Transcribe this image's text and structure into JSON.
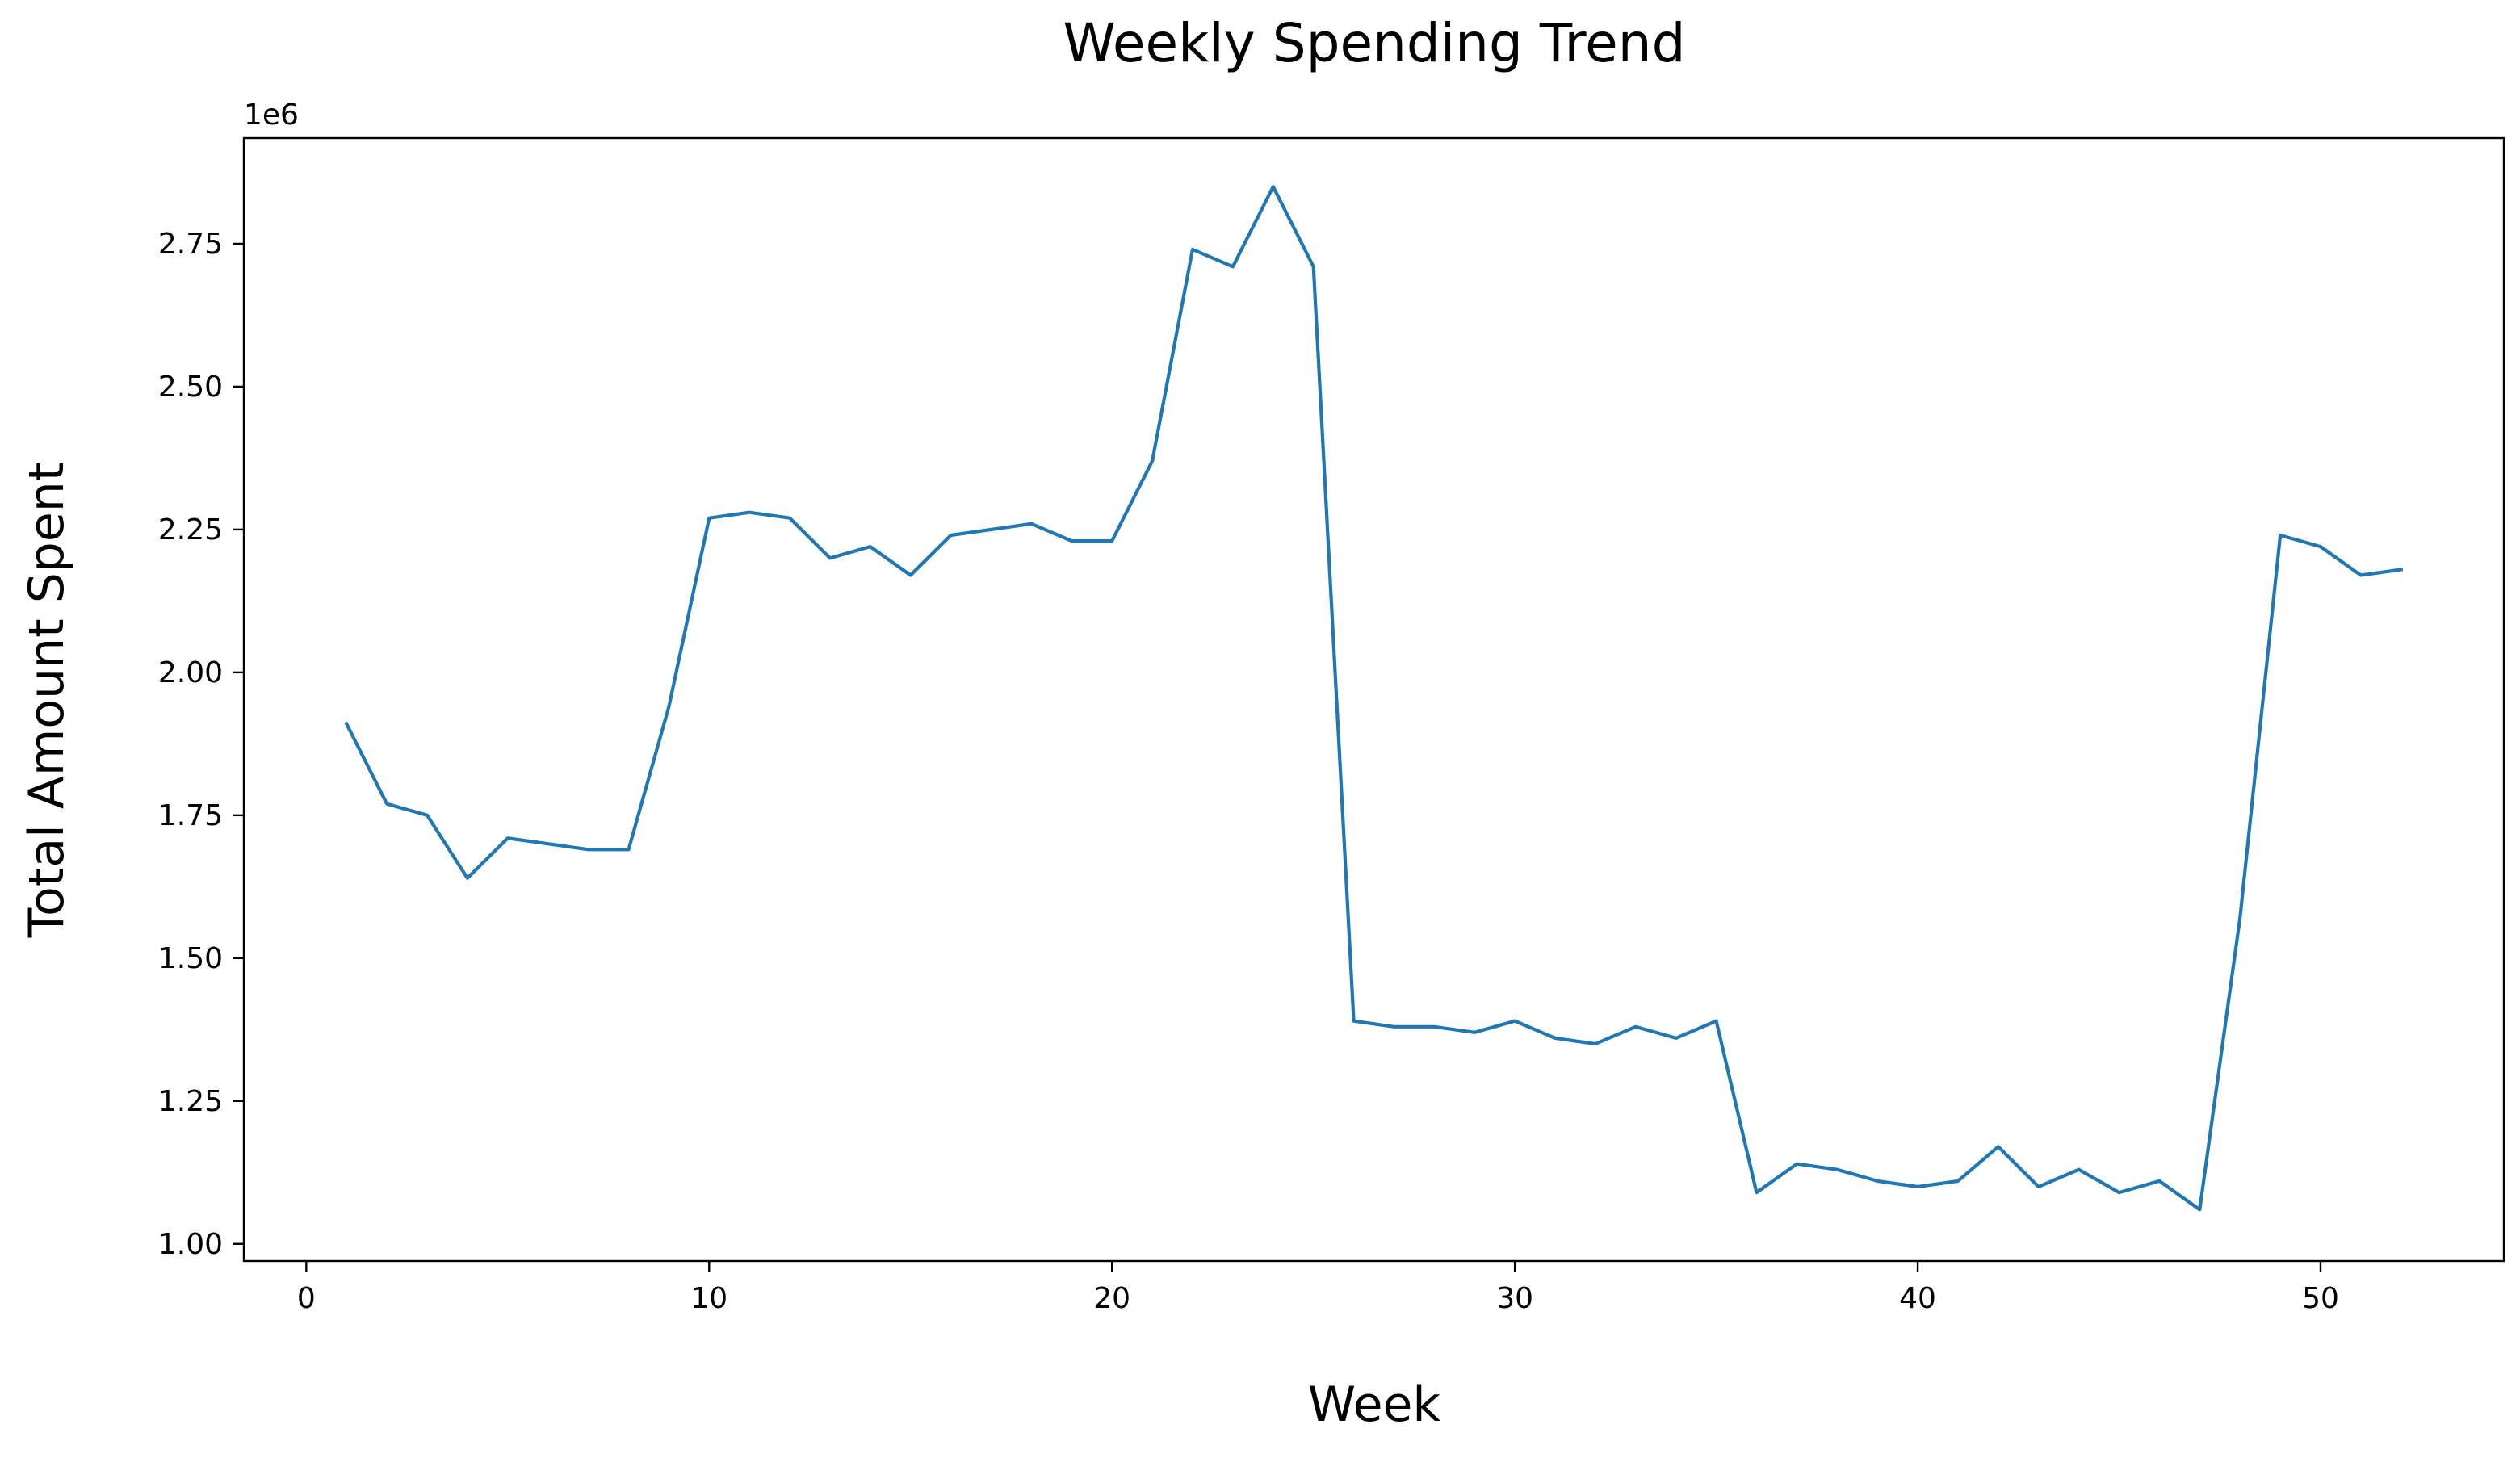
{
  "chart_data": {
    "type": "line",
    "title": "Weekly Spending Trend",
    "xlabel": "Week",
    "ylabel": "Total Amount Spent",
    "y_offset_label": "1e6",
    "xlim": [
      -1.55,
      54.55
    ],
    "ylim": [
      0.97,
      2.935
    ],
    "x_ticks": [
      0,
      10,
      20,
      30,
      40,
      50
    ],
    "x_tick_labels": [
      "0",
      "10",
      "20",
      "30",
      "40",
      "50"
    ],
    "y_ticks": [
      1.0,
      1.25,
      1.5,
      1.75,
      2.0,
      2.25,
      2.5,
      2.75
    ],
    "y_tick_labels": [
      "1.00",
      "1.25",
      "1.50",
      "1.75",
      "2.00",
      "2.25",
      "2.50",
      "2.75"
    ],
    "grid": false,
    "legend": "none",
    "line_color": "#1f77b4",
    "series": [
      {
        "x": [
          1,
          2,
          3,
          4,
          5,
          6,
          7,
          8,
          9,
          10,
          11,
          12,
          13,
          14,
          15,
          16,
          17,
          18,
          19,
          20,
          21,
          22,
          23,
          24,
          25,
          26,
          27,
          28,
          29,
          30,
          31,
          32,
          33,
          34,
          35,
          36,
          37,
          38,
          39,
          40,
          41,
          42,
          43,
          44,
          45,
          46,
          47,
          48,
          49,
          50,
          51,
          52
        ],
        "values": [
          1.91,
          1.77,
          1.75,
          1.64,
          1.71,
          1.7,
          1.69,
          1.69,
          1.94,
          2.27,
          2.28,
          2.27,
          2.2,
          2.22,
          2.17,
          2.24,
          2.25,
          2.26,
          2.23,
          2.23,
          2.37,
          2.74,
          2.71,
          2.85,
          2.71,
          1.39,
          1.38,
          1.38,
          1.37,
          1.39,
          1.36,
          1.35,
          1.38,
          1.36,
          1.39,
          1.09,
          1.14,
          1.13,
          1.11,
          1.1,
          1.11,
          1.17,
          1.1,
          1.13,
          1.09,
          1.11,
          1.06,
          1.57,
          2.24,
          2.22,
          2.17,
          2.18
        ]
      }
    ]
  }
}
